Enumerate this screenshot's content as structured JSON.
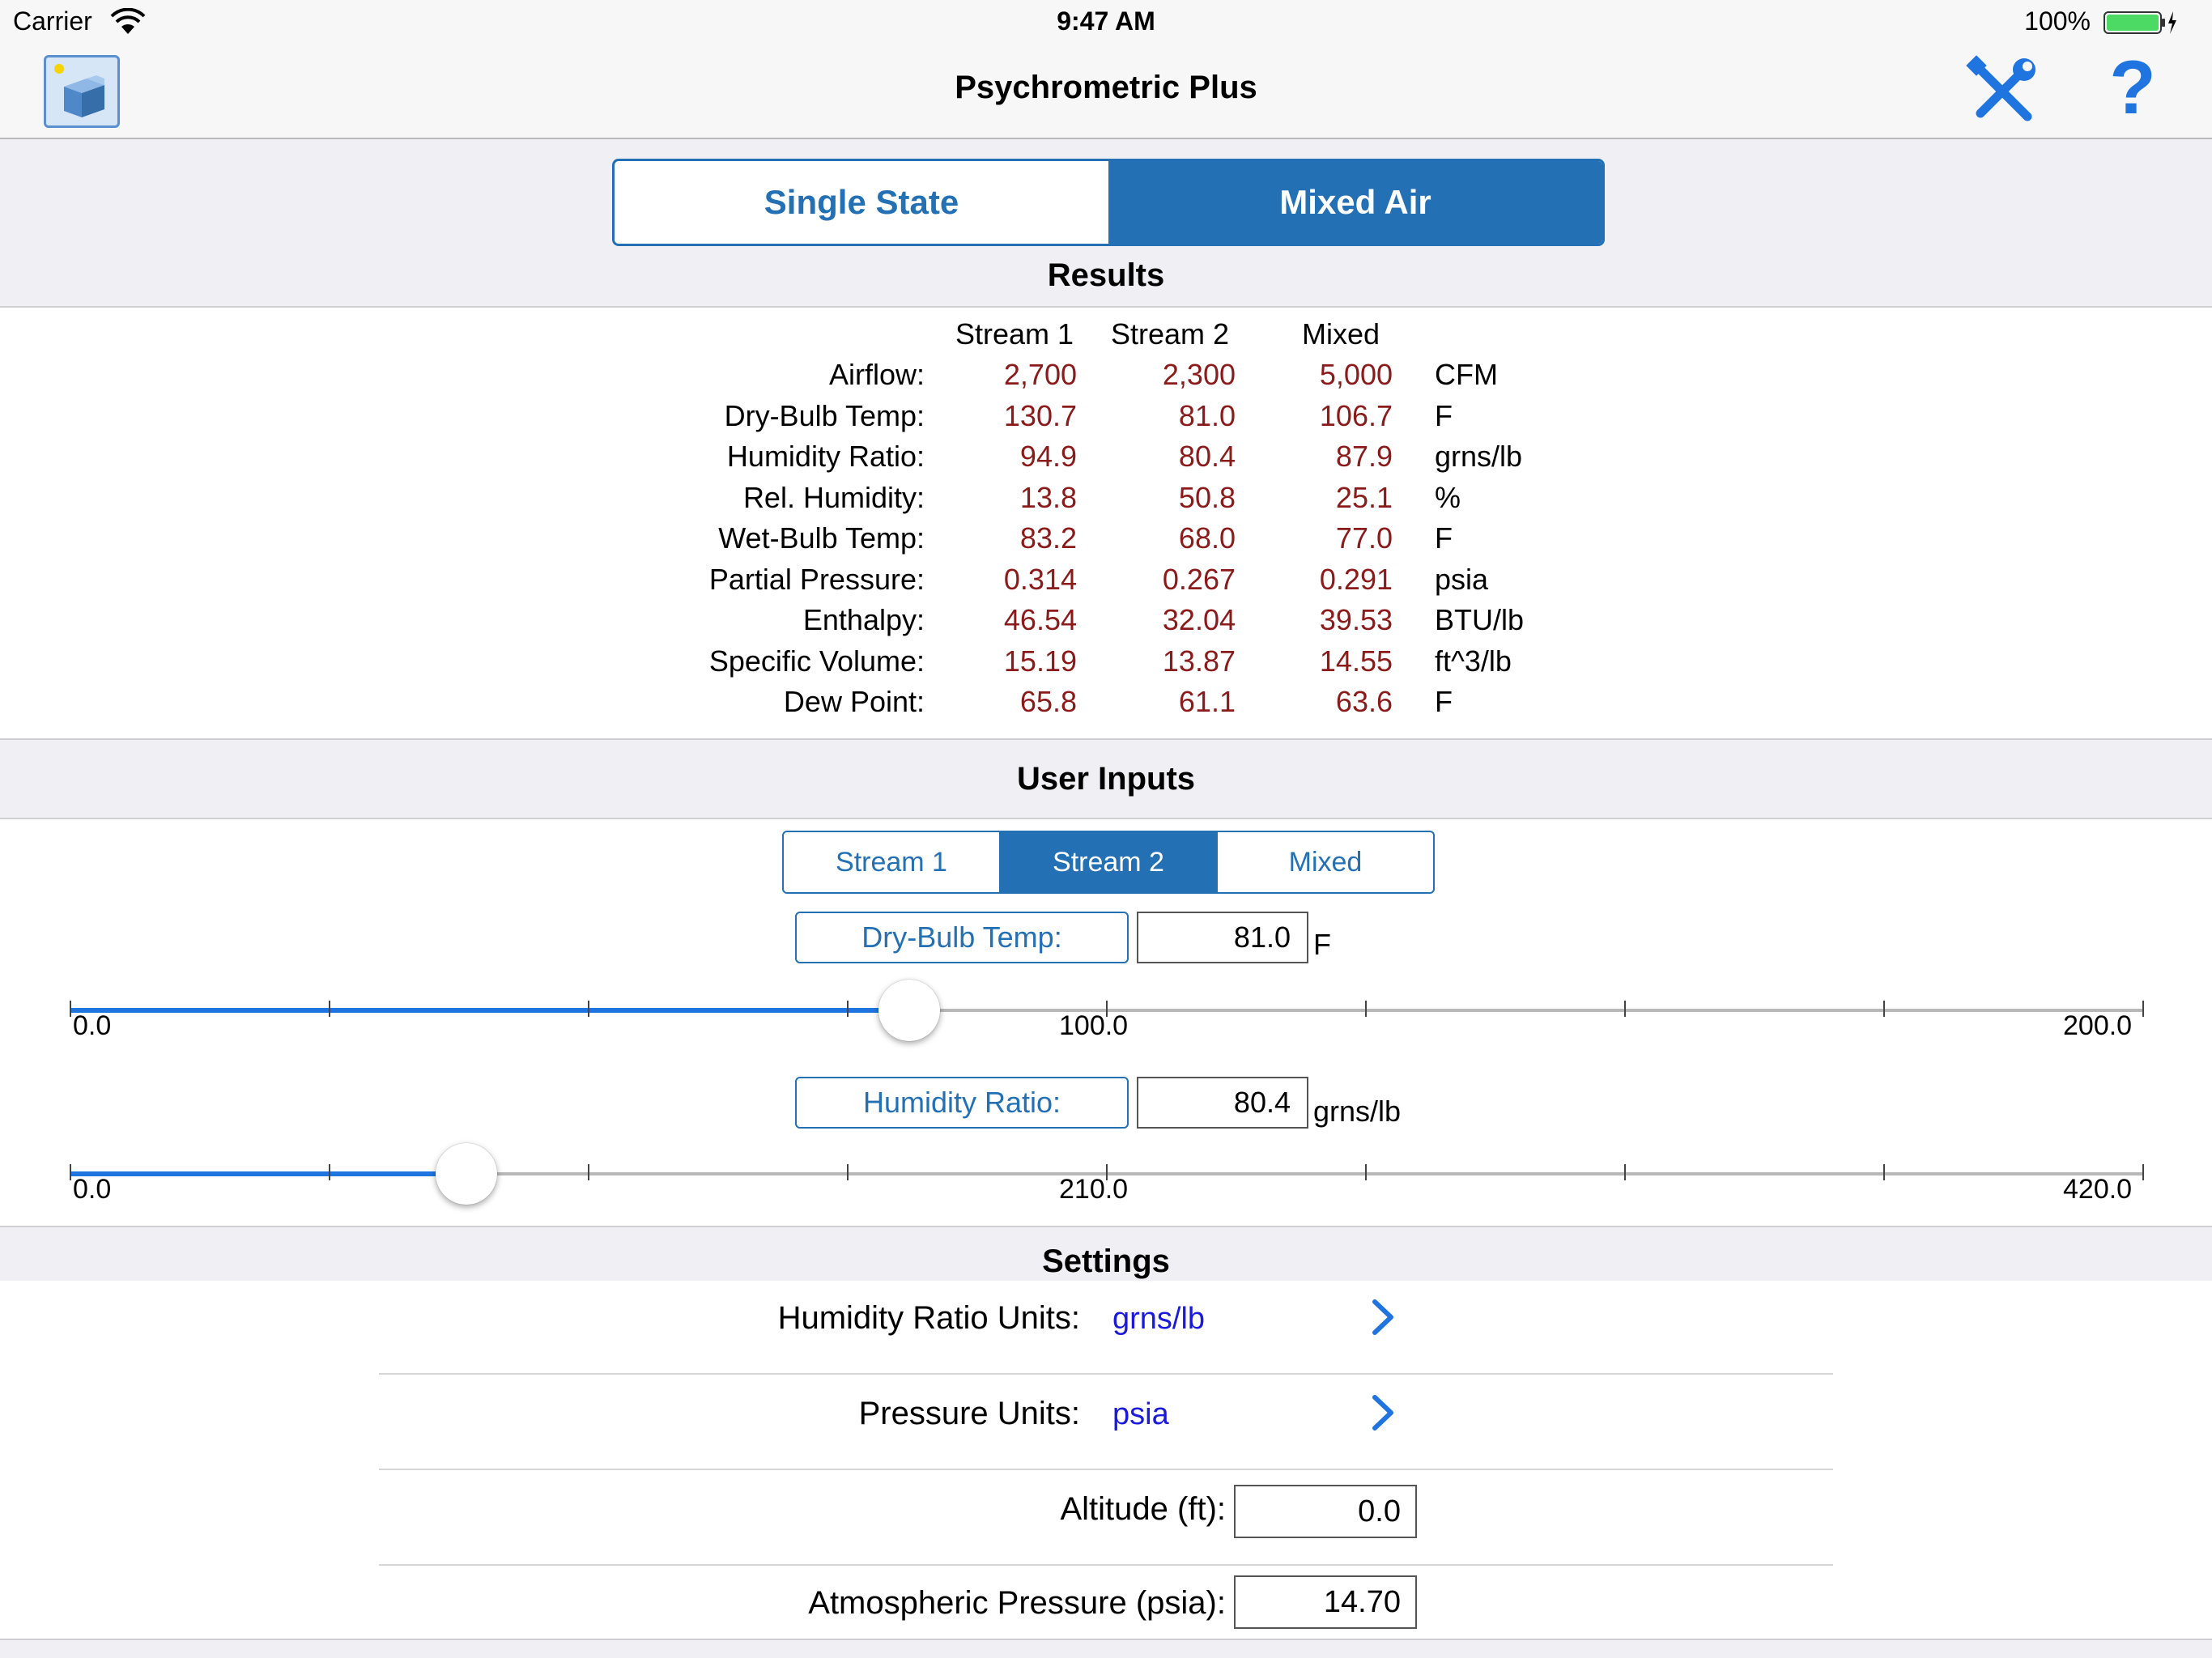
{
  "status_bar": {
    "carrier": "Carrier",
    "time": "9:47 AM",
    "battery": "100%"
  },
  "nav": {
    "title": "Psychrometric Plus",
    "help_label": "?"
  },
  "mode_tabs": [
    {
      "label": "Single State",
      "active": false
    },
    {
      "label": "Mixed Air",
      "active": true
    }
  ],
  "results": {
    "title": "Results",
    "columns": [
      "Stream 1",
      "Stream 2",
      "Mixed"
    ],
    "rows": [
      {
        "label": "Airflow:",
        "s1": "2,700",
        "s2": "2,300",
        "mixed": "5,000",
        "unit": "CFM"
      },
      {
        "label": "Dry-Bulb Temp:",
        "s1": "130.7",
        "s2": "81.0",
        "mixed": "106.7",
        "unit": "F"
      },
      {
        "label": "Humidity Ratio:",
        "s1": "94.9",
        "s2": "80.4",
        "mixed": "87.9",
        "unit": "grns/lb"
      },
      {
        "label": "Rel. Humidity:",
        "s1": "13.8",
        "s2": "50.8",
        "mixed": "25.1",
        "unit": "%"
      },
      {
        "label": "Wet-Bulb Temp:",
        "s1": "83.2",
        "s2": "68.0",
        "mixed": "77.0",
        "unit": "F"
      },
      {
        "label": "Partial Pressure:",
        "s1": "0.314",
        "s2": "0.267",
        "mixed": "0.291",
        "unit": "psia"
      },
      {
        "label": "Enthalpy:",
        "s1": "46.54",
        "s2": "32.04",
        "mixed": "39.53",
        "unit": "BTU/lb"
      },
      {
        "label": "Specific Volume:",
        "s1": "15.19",
        "s2": "13.87",
        "mixed": "14.55",
        "unit": "ft^3/lb"
      },
      {
        "label": "Dew Point:",
        "s1": "65.8",
        "s2": "61.1",
        "mixed": "63.6",
        "unit": "F"
      }
    ]
  },
  "inputs": {
    "title": "User Inputs",
    "stream_tabs": [
      {
        "label": "Stream 1",
        "active": false
      },
      {
        "label": "Stream 2",
        "active": true
      },
      {
        "label": "Mixed",
        "active": false
      }
    ],
    "dry_bulb": {
      "label": "Dry-Bulb Temp:",
      "value": "81.0",
      "unit": "F",
      "min": 0,
      "max": 200,
      "current": 81.0,
      "min_label": "0.0",
      "mid_label": "100.0",
      "max_label": "200.0"
    },
    "humidity": {
      "label": "Humidity Ratio:",
      "value": "80.4",
      "unit": "grns/lb",
      "min": 0,
      "max": 420,
      "current": 80.4,
      "min_label": "0.0",
      "mid_label": "210.0",
      "max_label": "420.0"
    }
  },
  "settings": {
    "title": "Settings",
    "humidity_units": {
      "label": "Humidity Ratio Units:",
      "value": "grns/lb"
    },
    "pressure_units": {
      "label": "Pressure Units:",
      "value": "psia"
    },
    "altitude": {
      "label": "Altitude (ft):",
      "value": "0.0"
    },
    "atm_pressure": {
      "label": "Atmospheric Pressure (psia):",
      "value": "14.70"
    }
  },
  "colors": {
    "accent": "#2470b4",
    "value_red": "#8b1a1a",
    "link_blue": "#1a1adc",
    "slider_blue": "#1f74e0"
  }
}
